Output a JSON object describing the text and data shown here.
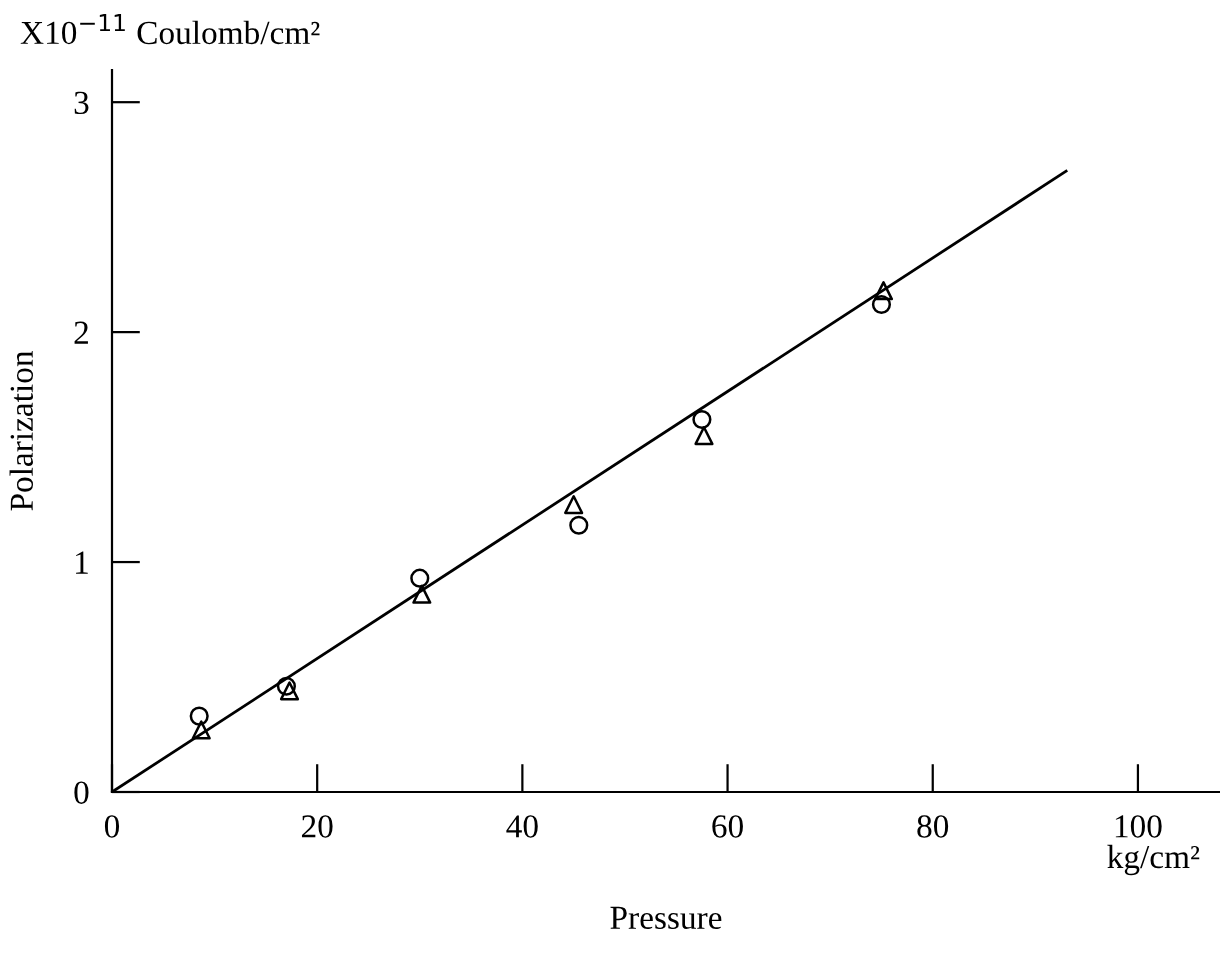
{
  "chart_data": {
    "type": "scatter",
    "xlabel": "Pressure",
    "ylabel": "Polarization",
    "annotations": [
      "X10$^{−11}$ Coulomb/cm²",
      "kg/cm²"
    ],
    "xlim": [
      0,
      108
    ],
    "xticks": [
      0,
      20,
      40,
      60,
      80,
      100
    ],
    "ylim": [
      0,
      3.14
    ],
    "yticks": [
      0,
      1,
      2,
      3
    ],
    "grid": false,
    "legend": false,
    "series": [
      {
        "marker": "circle",
        "color": "#000000",
        "x": [
          8.5,
          17,
          30,
          45.5,
          57.5,
          75
        ],
        "values": [
          0.33,
          0.46,
          0.93,
          1.16,
          1.62,
          2.12
        ]
      },
      {
        "marker": "triangle",
        "color": "#000000",
        "x": [
          8.7,
          17.3,
          30.2,
          45,
          57.7,
          75.2
        ],
        "values": [
          0.27,
          0.44,
          0.86,
          1.25,
          1.55,
          2.18
        ]
      },
      {
        "type": "line",
        "marker": "none",
        "line_style": "solid",
        "color": "#000000",
        "x": [
          0,
          93
        ],
        "values": [
          0,
          2.7
        ]
      }
    ]
  }
}
